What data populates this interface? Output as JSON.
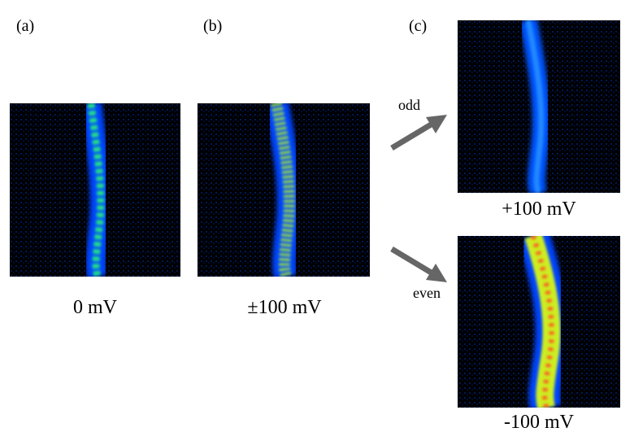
{
  "panels": [
    {
      "label": "(a)",
      "caption": "0 mV"
    },
    {
      "label": "(b)",
      "caption": "±100 mV"
    },
    {
      "label": "(c)",
      "outputs": [
        {
          "arrow": "odd",
          "caption": "+100 mV"
        },
        {
          "arrow": "even",
          "caption": "-100 mV"
        }
      ]
    }
  ]
}
